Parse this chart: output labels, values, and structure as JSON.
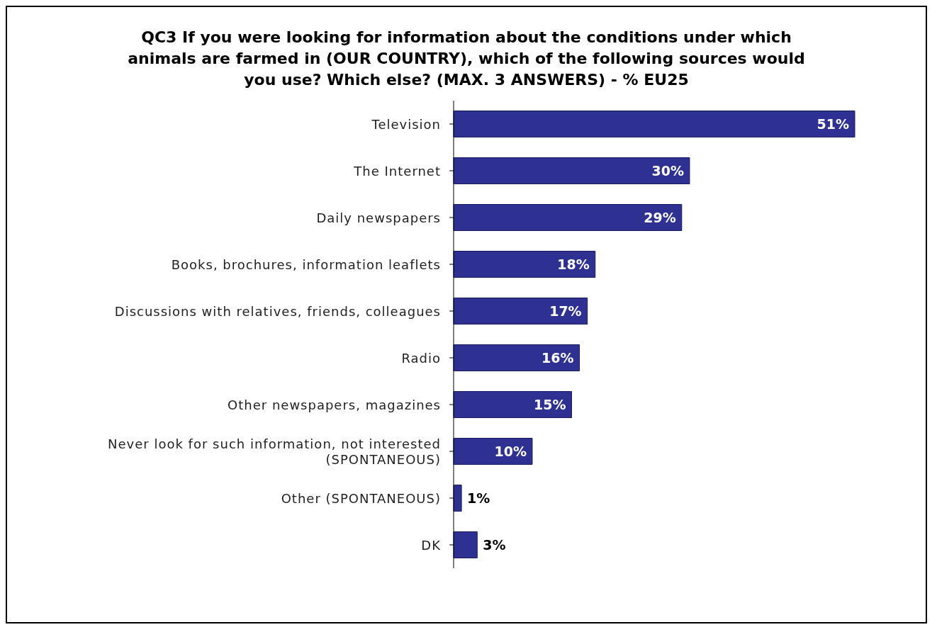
{
  "chart_data": {
    "type": "bar",
    "orientation": "horizontal",
    "title": "QC3 If you were looking for information about the conditions under which animals are farmed in (OUR COUNTRY), which of the following sources would you use? Which else? (MAX. 3 ANSWERS) - % EU25",
    "categories": [
      "Television",
      "The Internet",
      "Daily newspapers",
      "Books, brochures, information leaflets",
      "Discussions with relatives, friends, colleagues",
      "Radio",
      "Other newspapers, magazines",
      "Never look for such information, not interested (SPONTANEOUS)",
      "Other (SPONTANEOUS)",
      "DK"
    ],
    "values": [
      51,
      30,
      29,
      18,
      17,
      16,
      15,
      10,
      1,
      3
    ],
    "value_labels": [
      "51%",
      "30%",
      "29%",
      "18%",
      "17%",
      "16%",
      "15%",
      "10%",
      "1%",
      "3%"
    ],
    "color": "#2e3192",
    "grid": false,
    "legend": false
  }
}
